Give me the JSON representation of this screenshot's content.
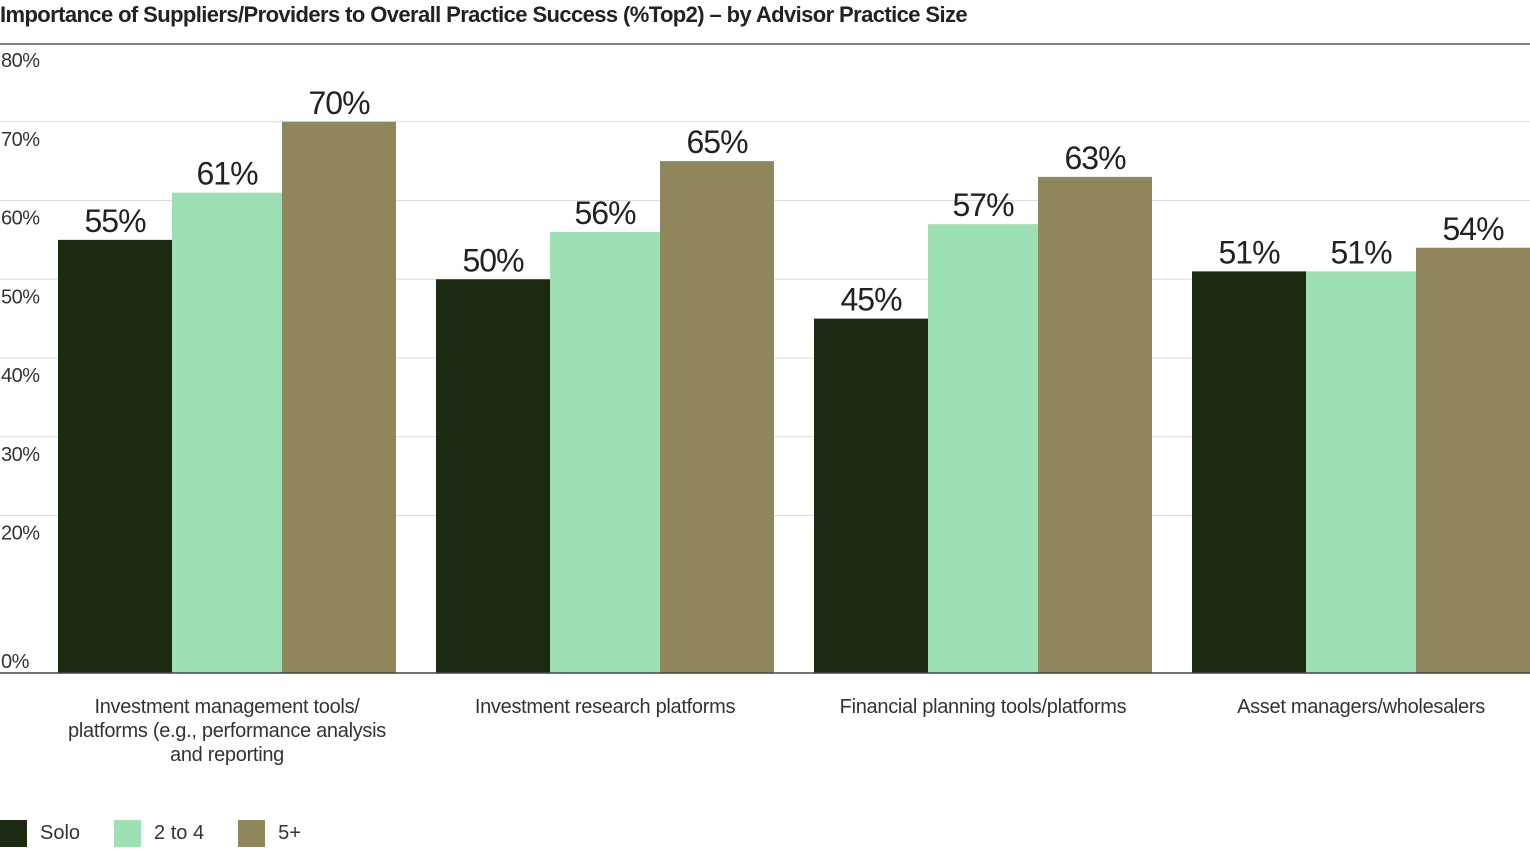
{
  "chart_data": {
    "type": "bar",
    "title": "Importance of Suppliers/Providers to Overall Practice Success (%Top2) – by Advisor Practice Size",
    "categories": [
      "Investment management tools/ platforms (e.g., performance analysis and reporting",
      "Investment research platforms",
      "Financial planning tools/platforms",
      "Asset managers/wholesalers"
    ],
    "category_lines": [
      [
        "Investment management tools/",
        "platforms (e.g., performance analysis",
        "and reporting"
      ],
      [
        "Investment research platforms"
      ],
      [
        "Financial planning tools/platforms"
      ],
      [
        "Asset managers/wholesalers"
      ]
    ],
    "series": [
      {
        "name": "Solo",
        "color": "#1b2a10",
        "values": [
          55,
          50,
          45,
          51
        ],
        "labels": [
          "55%",
          "50%",
          "45%",
          "51%"
        ]
      },
      {
        "name": "2 to 4",
        "color": "#9de0b4",
        "values": [
          61,
          56,
          57,
          51
        ],
        "labels": [
          "61%",
          "56%",
          "57%",
          "51%"
        ]
      },
      {
        "name": "5+",
        "color": "#8f865c",
        "values": [
          70,
          65,
          63,
          54
        ],
        "labels": [
          "70%",
          "65%",
          "63%",
          "54%"
        ]
      }
    ],
    "yticks": [
      "0%",
      "20%",
      "30%",
      "40%",
      "50%",
      "60%",
      "70%",
      "80%"
    ],
    "ytick_values": [
      0,
      20,
      30,
      40,
      50,
      60,
      70,
      80
    ],
    "ylim": [
      0,
      80
    ],
    "xlabel": "",
    "ylabel": "",
    "grid": true,
    "legend_position": "bottom-left"
  }
}
